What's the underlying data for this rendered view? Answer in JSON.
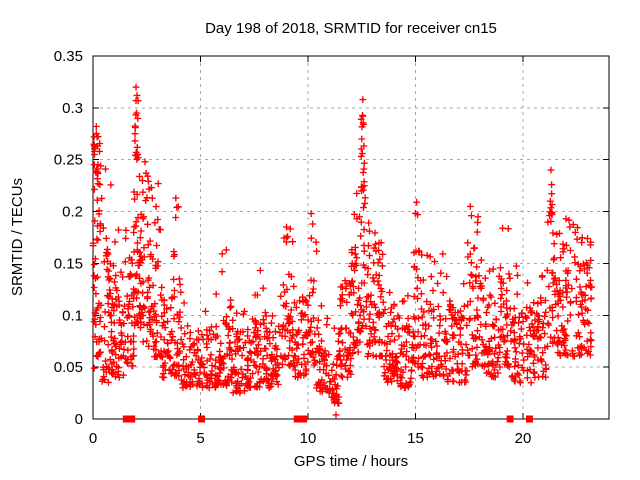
{
  "chart_data": {
    "type": "scatter",
    "title": "Day 198 of 2018, SRMTID for receiver cn15",
    "xlabel": "GPS time / hours",
    "ylabel": "SRMTID / TECUs",
    "xlim": [
      0,
      24
    ],
    "ylim": [
      0,
      0.35
    ],
    "x_tick_labels": [
      "0",
      "5",
      "10",
      "15",
      "20"
    ],
    "x_tick_values": [
      0,
      5,
      10,
      15,
      20
    ],
    "y_tick_labels": [
      "0",
      "0.05",
      "0.1",
      "0.15",
      "0.2",
      "0.25",
      "0.3",
      "0.35"
    ],
    "y_tick_values": [
      0,
      0.05,
      0.1,
      0.15,
      0.2,
      0.25,
      0.3,
      0.35
    ],
    "grid": "dashed",
    "legend": "none",
    "colors": {
      "marker": "#ff0000",
      "grid": "#a8a8a8",
      "axis": "#000000",
      "text": "#000000",
      "background": "#ffffff"
    },
    "series": [
      {
        "name": "SRMTID",
        "marker": "plus",
        "cloud": {
          "seed": 20180198,
          "density_scale": 1.35,
          "segments": [
            {
              "x0": 0.0,
              "x1": 0.35,
              "lo": 0.04,
              "hi": 0.23,
              "max": 0.285,
              "n": 45,
              "tail": 0.3
            },
            {
              "x0": 0.35,
              "x1": 0.85,
              "lo": 0.035,
              "hi": 0.19,
              "max": 0.26,
              "n": 35,
              "tail": 0.12
            },
            {
              "x0": 0.85,
              "x1": 1.5,
              "lo": 0.04,
              "hi": 0.14,
              "max": 0.205,
              "n": 45,
              "tail": 0.1
            },
            {
              "x0": 1.5,
              "x1": 1.9,
              "lo": 0.05,
              "hi": 0.15,
              "max": 0.19,
              "n": 30,
              "tail": 0.08
            },
            {
              "x0": 1.9,
              "x1": 2.2,
              "lo": 0.09,
              "hi": 0.25,
              "max": 0.315,
              "n": 34,
              "tail": 0.3,
              "spike_x": 2.02
            },
            {
              "x0": 2.2,
              "x1": 2.6,
              "lo": 0.07,
              "hi": 0.21,
              "max": 0.25,
              "n": 30,
              "tail": 0.15
            },
            {
              "x0": 2.6,
              "x1": 3.2,
              "lo": 0.06,
              "hi": 0.19,
              "max": 0.23,
              "n": 40,
              "tail": 0.1
            },
            {
              "x0": 3.2,
              "x1": 3.7,
              "lo": 0.04,
              "hi": 0.13,
              "max": 0.165,
              "n": 30,
              "tail": 0.08
            },
            {
              "x0": 3.7,
              "x1": 4.1,
              "lo": 0.04,
              "hi": 0.14,
              "max": 0.215,
              "n": 28,
              "tail": 0.12
            },
            {
              "x0": 4.1,
              "x1": 5.2,
              "lo": 0.03,
              "hi": 0.09,
              "max": 0.13,
              "n": 55,
              "tail": 0.07
            },
            {
              "x0": 5.2,
              "x1": 6.0,
              "lo": 0.03,
              "hi": 0.09,
              "max": 0.125,
              "n": 45,
              "tail": 0.07
            },
            {
              "x0": 6.0,
              "x1": 6.5,
              "lo": 0.03,
              "hi": 0.1,
              "max": 0.165,
              "n": 30,
              "tail": 0.09
            },
            {
              "x0": 6.5,
              "x1": 7.3,
              "lo": 0.025,
              "hi": 0.085,
              "max": 0.12,
              "n": 45,
              "tail": 0.07
            },
            {
              "x0": 7.3,
              "x1": 7.8,
              "lo": 0.03,
              "hi": 0.1,
              "max": 0.15,
              "n": 30,
              "tail": 0.08
            },
            {
              "x0": 7.8,
              "x1": 8.7,
              "lo": 0.03,
              "hi": 0.09,
              "max": 0.13,
              "n": 50,
              "tail": 0.07
            },
            {
              "x0": 8.7,
              "x1": 9.4,
              "lo": 0.05,
              "hi": 0.14,
              "max": 0.185,
              "n": 40,
              "tail": 0.1
            },
            {
              "x0": 9.4,
              "x1": 10.0,
              "lo": 0.04,
              "hi": 0.12,
              "max": 0.15,
              "n": 35,
              "tail": 0.07
            },
            {
              "x0": 10.0,
              "x1": 10.4,
              "lo": 0.05,
              "hi": 0.14,
              "max": 0.2,
              "n": 20,
              "tail": 0.12
            },
            {
              "x0": 10.4,
              "x1": 11.0,
              "lo": 0.025,
              "hi": 0.08,
              "max": 0.11,
              "n": 35,
              "tail": 0.06
            },
            {
              "x0": 11.0,
              "x1": 11.45,
              "lo": 0.015,
              "hi": 0.06,
              "max": 0.09,
              "n": 25,
              "tail": 0.06
            },
            {
              "x0": 11.45,
              "x1": 12.0,
              "lo": 0.04,
              "hi": 0.13,
              "max": 0.18,
              "n": 35,
              "tail": 0.09
            },
            {
              "x0": 12.0,
              "x1": 12.45,
              "lo": 0.06,
              "hi": 0.18,
              "max": 0.23,
              "n": 35,
              "tail": 0.1
            },
            {
              "x0": 12.45,
              "x1": 12.7,
              "lo": 0.08,
              "hi": 0.22,
              "max": 0.3,
              "n": 25,
              "tail": 0.28,
              "spike_x": 12.55
            },
            {
              "x0": 12.7,
              "x1": 13.5,
              "lo": 0.06,
              "hi": 0.17,
              "max": 0.21,
              "n": 50,
              "tail": 0.08
            },
            {
              "x0": 13.5,
              "x1": 14.3,
              "lo": 0.035,
              "hi": 0.11,
              "max": 0.15,
              "n": 45,
              "tail": 0.07
            },
            {
              "x0": 14.3,
              "x1": 14.9,
              "lo": 0.03,
              "hi": 0.09,
              "max": 0.12,
              "n": 35,
              "tail": 0.07
            },
            {
              "x0": 14.9,
              "x1": 15.3,
              "lo": 0.05,
              "hi": 0.16,
              "max": 0.21,
              "n": 25,
              "tail": 0.12
            },
            {
              "x0": 15.3,
              "x1": 16.4,
              "lo": 0.04,
              "hi": 0.13,
              "max": 0.17,
              "n": 55,
              "tail": 0.07
            },
            {
              "x0": 16.4,
              "x1": 17.4,
              "lo": 0.035,
              "hi": 0.11,
              "max": 0.14,
              "n": 55,
              "tail": 0.07
            },
            {
              "x0": 17.4,
              "x1": 18.2,
              "lo": 0.05,
              "hi": 0.16,
              "max": 0.21,
              "n": 45,
              "tail": 0.09
            },
            {
              "x0": 18.2,
              "x1": 18.9,
              "lo": 0.04,
              "hi": 0.12,
              "max": 0.16,
              "n": 40,
              "tail": 0.07
            },
            {
              "x0": 18.9,
              "x1": 19.4,
              "lo": 0.05,
              "hi": 0.15,
              "max": 0.185,
              "n": 30,
              "tail": 0.1
            },
            {
              "x0": 19.4,
              "x1": 20.4,
              "lo": 0.035,
              "hi": 0.11,
              "max": 0.15,
              "n": 50,
              "tail": 0.07
            },
            {
              "x0": 20.4,
              "x1": 21.1,
              "lo": 0.04,
              "hi": 0.12,
              "max": 0.16,
              "n": 40,
              "tail": 0.08
            },
            {
              "x0": 21.1,
              "x1": 21.5,
              "lo": 0.07,
              "hi": 0.19,
              "max": 0.235,
              "n": 25,
              "tail": 0.3,
              "spike_x": 21.3
            },
            {
              "x0": 21.5,
              "x1": 22.6,
              "lo": 0.06,
              "hi": 0.17,
              "max": 0.2,
              "n": 60,
              "tail": 0.08
            },
            {
              "x0": 22.6,
              "x1": 23.2,
              "lo": 0.06,
              "hi": 0.15,
              "max": 0.18,
              "n": 40,
              "tail": 0.08
            }
          ]
        },
        "highlight_points": [
          [
            0.05,
            0.272
          ],
          [
            0.07,
            0.258
          ],
          [
            0.3,
            0.258
          ],
          [
            0.36,
            0.244
          ],
          [
            2.0,
            0.32
          ],
          [
            2.0,
            0.307
          ],
          [
            2.03,
            0.295
          ],
          [
            1.97,
            0.281
          ],
          [
            2.06,
            0.262
          ],
          [
            2.1,
            0.252
          ],
          [
            2.42,
            0.248
          ],
          [
            2.47,
            0.237
          ],
          [
            3.85,
            0.213
          ],
          [
            3.9,
            0.204
          ],
          [
            6.2,
            0.163
          ],
          [
            9.0,
            0.185
          ],
          [
            9.05,
            0.176
          ],
          [
            10.15,
            0.198
          ],
          [
            10.22,
            0.188
          ],
          [
            11.3,
            0.004
          ],
          [
            12.55,
            0.308
          ],
          [
            12.55,
            0.292
          ],
          [
            12.58,
            0.284
          ],
          [
            12.5,
            0.27
          ],
          [
            12.53,
            0.256
          ],
          [
            12.6,
            0.241
          ],
          [
            15.05,
            0.209
          ],
          [
            15.1,
            0.197
          ],
          [
            17.55,
            0.205
          ],
          [
            17.6,
            0.196
          ],
          [
            19.05,
            0.184
          ],
          [
            21.3,
            0.24
          ],
          [
            21.33,
            0.226
          ],
          [
            21.27,
            0.21
          ],
          [
            22.0,
            0.193
          ],
          [
            23.0,
            0.174
          ]
        ]
      },
      {
        "name": "flagged-epochs",
        "marker": "filled-square",
        "y": 0,
        "x": [
          1.55,
          1.8,
          5.05,
          9.5,
          9.8,
          19.4,
          20.3
        ]
      }
    ]
  }
}
